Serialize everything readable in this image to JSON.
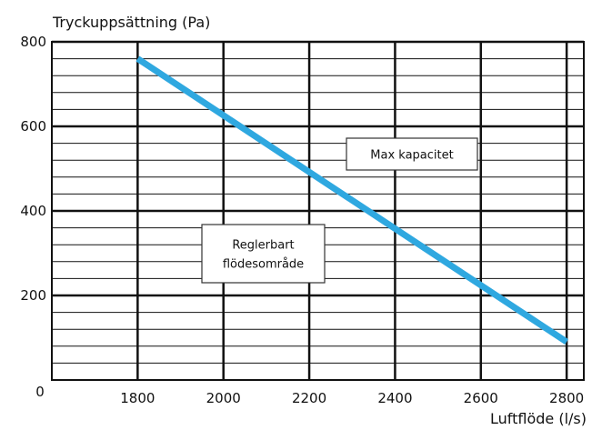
{
  "chart_data": {
    "type": "line",
    "ylabel": "Tryckuppsättning (Pa)",
    "xlabel": "Luftflöde (l/s)",
    "origin_label": "0",
    "x_ticks": [
      1800,
      2000,
      2200,
      2400,
      2600,
      2800
    ],
    "y_ticks": [
      200,
      400,
      600,
      800
    ],
    "xlim": [
      1600,
      2840
    ],
    "ylim": [
      0,
      800
    ],
    "grid": true,
    "series": [
      {
        "name": "",
        "x": [
          1800,
          2800
        ],
        "y": [
          760,
          90
        ]
      }
    ],
    "annotations": [
      {
        "id": "max",
        "lines": [
          "Max kapacitet"
        ]
      },
      {
        "id": "reg",
        "lines": [
          "Reglerbart",
          "flödesområde"
        ]
      }
    ],
    "colors": {
      "line": "#2fa8e0",
      "grid": "#111111",
      "text": "#111111",
      "box_border": "#333333"
    }
  }
}
